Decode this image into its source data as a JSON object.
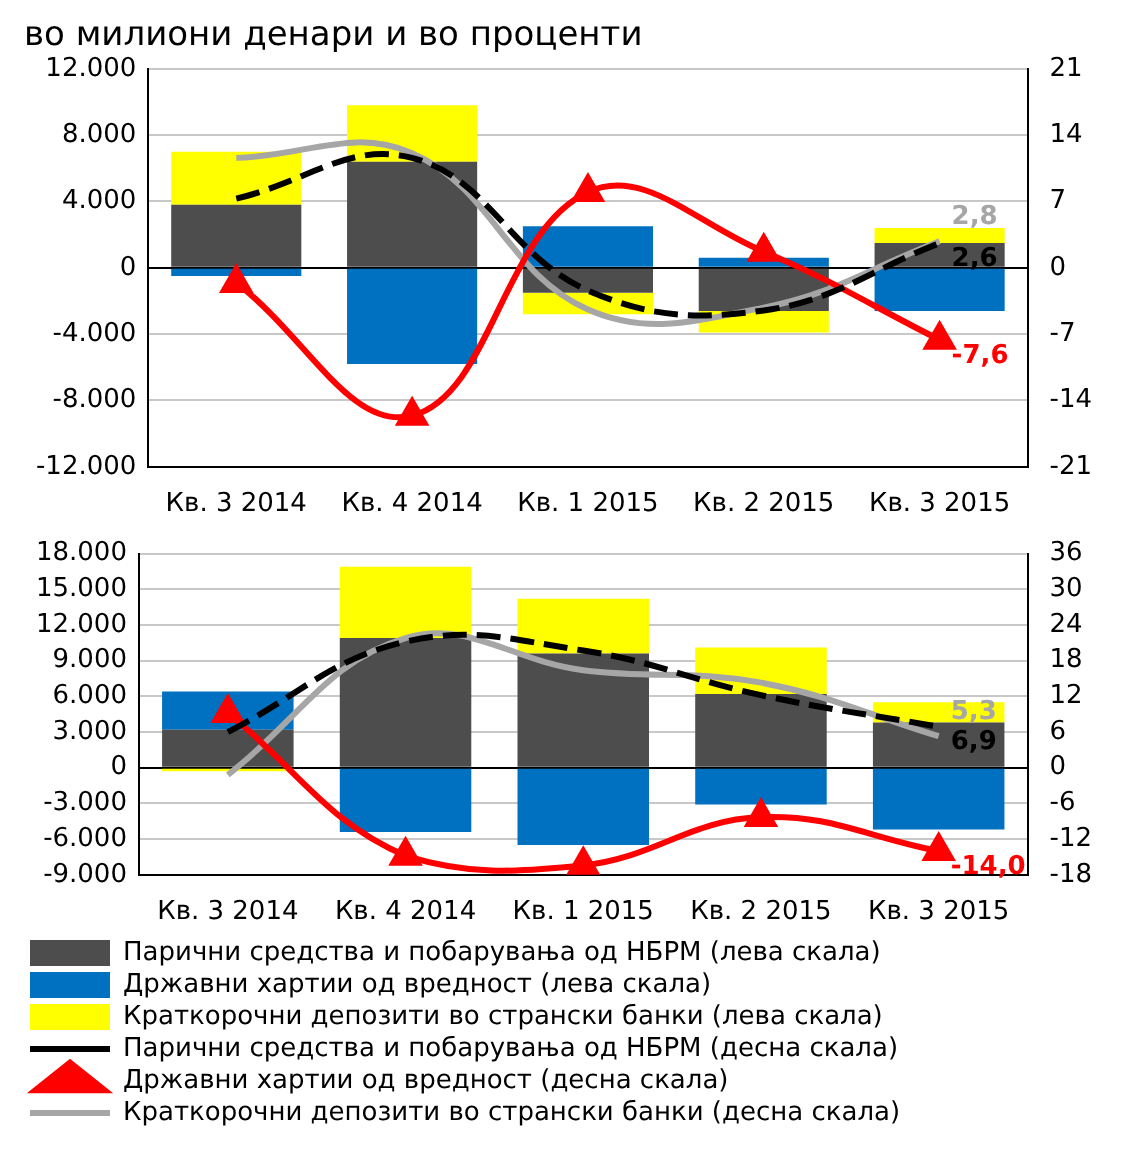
{
  "chart_data": [
    {
      "type": "bar",
      "title": "во милиони денари и во проценти",
      "categories": [
        "Кв. 3 2014",
        "Кв. 4 2014",
        "Кв. 1 2015",
        "Кв. 2 2015",
        "Кв. 3 2015"
      ],
      "stacked": true,
      "grid": "y",
      "legend": false,
      "ylim": [
        -12000,
        12000
      ],
      "yticks": [
        {
          "value": -12000,
          "label": "-12.000"
        },
        {
          "value": -8000,
          "label": "-8.000"
        },
        {
          "value": -4000,
          "label": "-4.000"
        },
        0,
        {
          "value": 4000,
          "label": "4.000"
        },
        {
          "value": 8000,
          "label": "8.000"
        },
        {
          "value": 12000,
          "label": "12.000"
        }
      ],
      "y2lim": [
        -21,
        21
      ],
      "y2ticks": [
        -21,
        -14,
        -7,
        0,
        7,
        14,
        21
      ],
      "series": [
        {
          "color": "#4d4d4d",
          "values": [
            3800,
            6400,
            -1500,
            -2600,
            1500
          ]
        },
        {
          "color": "#0070c0",
          "values": [
            -500,
            -5800,
            2500,
            600,
            -2600
          ]
        },
        {
          "color": "#ffff00",
          "values": [
            3200,
            3400,
            -1300,
            -1300,
            900
          ]
        },
        {
          "type": "line",
          "axis": "y2",
          "color": "#000000",
          "line_style": "dashed",
          "marker": "none",
          "values": [
            7.3,
            11.6,
            -2.4,
            -4.5,
            2.6
          ],
          "value_labels": [
            null,
            null,
            null,
            null,
            "2,6"
          ]
        },
        {
          "type": "line",
          "axis": "y2",
          "color": "#ff0000",
          "line_style": "solid",
          "marker": "triangle",
          "values": [
            -1.6,
            -15.6,
            8.0,
            1.7,
            -7.6
          ],
          "value_labels": [
            null,
            null,
            null,
            null,
            "-7,6"
          ]
        },
        {
          "type": "line",
          "axis": "y2",
          "color": "#a6a6a6",
          "line_style": "solid",
          "marker": "none",
          "values": [
            11.6,
            12.1,
            -4.4,
            -4.2,
            2.8
          ],
          "value_labels": [
            null,
            null,
            null,
            null,
            "2,8"
          ]
        }
      ]
    },
    {
      "type": "bar",
      "categories": [
        "Кв. 3 2014",
        "Кв. 4 2014",
        "Кв. 1 2015",
        "Кв. 2 2015",
        "Кв. 3 2015"
      ],
      "stacked": true,
      "grid": "y",
      "legend": "bottom",
      "ylim": [
        -9000,
        18000
      ],
      "yticks": [
        {
          "value": -9000,
          "label": "-9.000"
        },
        {
          "value": -6000,
          "label": "-6.000"
        },
        {
          "value": -3000,
          "label": "-3.000"
        },
        0,
        {
          "value": 3000,
          "label": "3.000"
        },
        {
          "value": 6000,
          "label": "6.000"
        },
        {
          "value": 9000,
          "label": "9.000"
        },
        {
          "value": 12000,
          "label": "12.000"
        },
        {
          "value": 15000,
          "label": "15.000"
        },
        {
          "value": 18000,
          "label": "18.000"
        }
      ],
      "y2lim": [
        -18,
        36
      ],
      "y2ticks": [
        -18,
        -12,
        -6,
        0,
        6,
        12,
        18,
        24,
        30,
        36
      ],
      "series": [
        {
          "name": "Парични средства и побарувања од НБРМ (лева скала)",
          "color": "#4d4d4d",
          "values": [
            3200,
            10900,
            9600,
            6200,
            3800
          ]
        },
        {
          "name": "Државни хартии од вредност (лева скала)",
          "color": "#0070c0",
          "values": [
            3200,
            -5400,
            -6500,
            -3100,
            -5200
          ]
        },
        {
          "name": "Краткорочни депозити во странски банки (лева скала)",
          "color": "#ffff00",
          "values": [
            -300,
            6000,
            4600,
            3900,
            1700
          ]
        },
        {
          "type": "line",
          "axis": "y2",
          "name": "Парични средства и побарувања од НБРМ (десна скала)",
          "color": "#000000",
          "line_style": "dashed",
          "marker": "none",
          "values": [
            6.0,
            21.2,
            19.7,
            12.2,
            6.9
          ],
          "value_labels": [
            null,
            null,
            null,
            null,
            "6,9"
          ]
        },
        {
          "type": "line",
          "axis": "y2",
          "name": "Државни хартии од вредност (десна скала)",
          "color": "#ff0000",
          "line_style": "solid",
          "marker": "triangle",
          "values": [
            9.2,
            -14.8,
            -16.4,
            -8.3,
            -14.0
          ],
          "value_labels": [
            null,
            null,
            null,
            null,
            "-14,0"
          ]
        },
        {
          "type": "line",
          "axis": "y2",
          "name": "Краткорочни депозити во странски банки (десна скала)",
          "color": "#a6a6a6",
          "line_style": "solid",
          "marker": "none",
          "values": [
            -1.2,
            21.8,
            16.4,
            14.3,
            5.3
          ],
          "value_labels": [
            null,
            null,
            null,
            null,
            "5,3"
          ]
        }
      ]
    }
  ]
}
